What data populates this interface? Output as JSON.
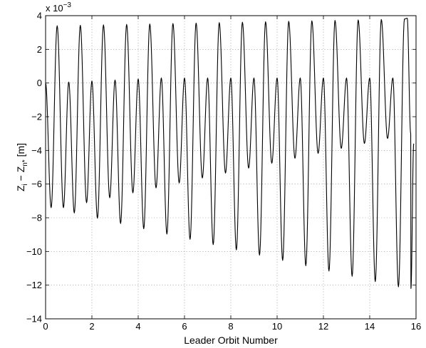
{
  "chart_data": {
    "type": "line",
    "xlabel": "Leader Orbit Number",
    "ylabel": {
      "main": "Z",
      "sub1": "i",
      "minus": " − Z",
      "sub2": "n*",
      "unit": " [m]"
    },
    "y_multiplier": {
      "prefix": "x 10",
      "exponent": "−3"
    },
    "xlim": [
      0,
      16
    ],
    "ylim": [
      -14,
      4
    ],
    "xticks": [
      0,
      2,
      4,
      6,
      8,
      10,
      12,
      14,
      16
    ],
    "yticks": [
      -14,
      -12,
      -10,
      -8,
      -6,
      -4,
      -2,
      0,
      2,
      4
    ],
    "xtick_labels": [
      "0",
      "2",
      "4",
      "6",
      "8",
      "10",
      "12",
      "14",
      "16"
    ],
    "ytick_labels": [
      "−14",
      "−12",
      "−10",
      "−8",
      "−6",
      "−4",
      "−2",
      "0",
      "2",
      "4"
    ],
    "grid": true,
    "line_color": "#000000",
    "series": [
      {
        "description_of_shape": "oscillation with two peaks per orbit",
        "x": [
          0.0,
          0.23,
          0.5,
          1.0,
          1.23,
          1.5,
          2.0,
          2.23,
          2.5,
          3.0,
          3.23,
          3.5,
          4.0,
          4.23,
          4.5,
          5.0,
          5.23,
          5.5,
          6.0,
          6.23,
          6.5,
          7.0,
          7.23,
          7.5,
          8.0,
          8.23,
          8.5,
          9.0,
          9.23,
          9.5,
          10.0,
          10.23,
          10.5,
          11.0,
          11.23,
          11.5,
          12.0,
          12.23,
          12.5,
          13.0,
          13.23,
          13.5,
          14.0,
          14.23,
          14.5,
          15.0,
          15.23,
          15.5,
          15.75,
          15.9
        ],
        "y": [
          0.0,
          -7.4,
          3.4,
          0.0,
          -7.8,
          3.4,
          0.0,
          -8.1,
          3.3,
          0.1,
          -8.4,
          3.3,
          0.1,
          -8.7,
          3.3,
          0.2,
          -9.0,
          3.3,
          0.3,
          -9.3,
          3.3,
          0.3,
          -9.5,
          3.3,
          0.3,
          -9.8,
          3.3,
          0.3,
          -10.2,
          3.3,
          0.3,
          -10.5,
          3.4,
          0.3,
          -10.8,
          3.5,
          0.3,
          -11.1,
          3.5,
          0.3,
          -11.5,
          3.6,
          0.3,
          -11.9,
          3.7,
          0.3,
          -11.9,
          3.8,
          -12.2,
          -3.6
        ]
      }
    ],
    "wave_model": {
      "pre_peak_start": 0.0,
      "trough_start": -7.4,
      "trough_end": -12.1,
      "peak_start": 3.4,
      "peak_end": 3.8,
      "secondary_peak_start": 0.0,
      "secondary_peak_end": 0.3,
      "secondary_trough_start": -7.4,
      "secondary_trough_end": -3.0,
      "end_value": -3.6
    }
  }
}
